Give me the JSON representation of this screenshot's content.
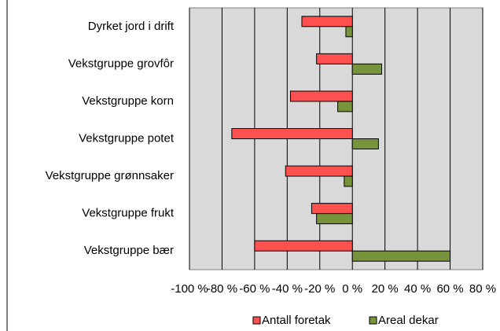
{
  "chart_data": {
    "type": "hbar",
    "categories": [
      "Dyrket jord i drift",
      "Vekstgruppe grovfôr",
      "Vekstgruppe korn",
      "Vekstgruppe potet",
      "Vekstgruppe grønnsaker",
      "Vekstgruppe frukt",
      "Vekstgruppe bær"
    ],
    "series": [
      {
        "name": "Antall foretak",
        "color": "#ff5050",
        "values": [
          -31,
          -22,
          -38,
          -74,
          -41,
          -25,
          -60
        ]
      },
      {
        "name": "Areal dekar",
        "color": "#77933c",
        "values": [
          -4,
          18,
          -9,
          16,
          -5,
          -22,
          60
        ]
      }
    ],
    "xlim": [
      -100,
      80
    ],
    "xticks": [
      {
        "value": -100,
        "label": "-100 %"
      },
      {
        "value": -80,
        "label": "-80 %"
      },
      {
        "value": -60,
        "label": "-60 %"
      },
      {
        "value": -40,
        "label": "-40 %"
      },
      {
        "value": -20,
        "label": "-20 %"
      },
      {
        "value": 0,
        "label": "0 %"
      },
      {
        "value": 20,
        "label": "20 %"
      },
      {
        "value": 40,
        "label": "40 %"
      },
      {
        "value": 60,
        "label": "60 %"
      },
      {
        "value": 80,
        "label": "80 %"
      }
    ],
    "grid": true,
    "legend": "bottom"
  }
}
